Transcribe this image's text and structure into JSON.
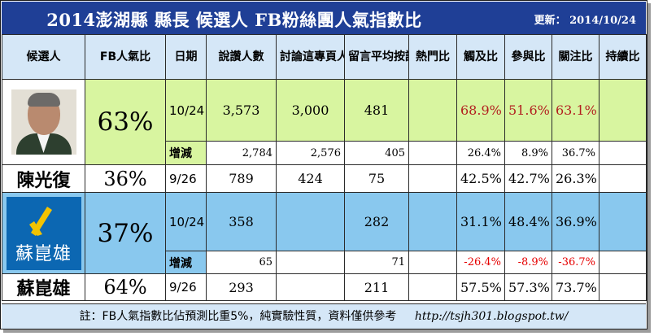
{
  "title": "2014澎湖縣 縣長 候選人 FB粉絲團人氣指數比",
  "update": "更新： 2014/10/24",
  "headers": [
    "候選人",
    "FB人氣比",
    "日期",
    "說讚人數",
    "討論這專頁人數",
    "留言平均按讚人數",
    "熱門比",
    "觸及比",
    "參與比",
    "關注比",
    "持續比"
  ],
  "candidate1": {
    "photo": "candidate-portrait-photo",
    "fb_ratio": "63%",
    "date": "10/24",
    "likes": "3,573",
    "talking": "3,000",
    "avg_comment_likes": "481",
    "hot": "",
    "reach": "68.9%",
    "engage": "51.6%",
    "attention": "63.1%",
    "sustain": "",
    "delta_label": "增減",
    "delta": {
      "likes": "2,784",
      "talking": "2,576",
      "avg_comment_likes": "405",
      "reach": "26.4%",
      "engage": "8.9%",
      "attention": "36.7%"
    },
    "name": "陳光復",
    "prev_ratio": "36%",
    "prev_date": "9/26",
    "prev": {
      "likes": "789",
      "talking": "424",
      "avg_comment_likes": "75",
      "reach": "42.5%",
      "engage": "42.7%",
      "attention": "26.3%"
    }
  },
  "candidate2": {
    "logo_text": "蘇崑雄",
    "logo_color": "#0c67b2",
    "logo_accent": "#f3c300",
    "fb_ratio": "37%",
    "date": "10/24",
    "likes": "358",
    "talking": "",
    "avg_comment_likes": "282",
    "hot": "",
    "reach": "31.1%",
    "engage": "48.4%",
    "attention": "36.9%",
    "sustain": "",
    "delta_label": "增減",
    "delta": {
      "likes": "65",
      "talking": "",
      "avg_comment_likes": "71",
      "reach": "-26.4%",
      "engage": "-8.9%",
      "attention": "-36.7%"
    },
    "name": "蘇崑雄",
    "prev_ratio": "64%",
    "prev_date": "9/26",
    "prev": {
      "likes": "293",
      "talking": "",
      "avg_comment_likes": "211",
      "reach": "57.5%",
      "engage": "57.3%",
      "attention": "73.7%"
    }
  },
  "footer": {
    "note": "註：FB人氣指數比佔預測比重5%，純實驗性質，資料僅供參考",
    "url": "http://tsjh301.blogspot.tw/"
  },
  "colors": {
    "title_bg": "#1f3f96",
    "header_bg": "#d5e7f7",
    "candidate1_bg": "#d8f5a0",
    "candidate2_bg": "#89c8ee",
    "emphasis_red": "#b21f1f",
    "negative_red": "#e60000"
  }
}
